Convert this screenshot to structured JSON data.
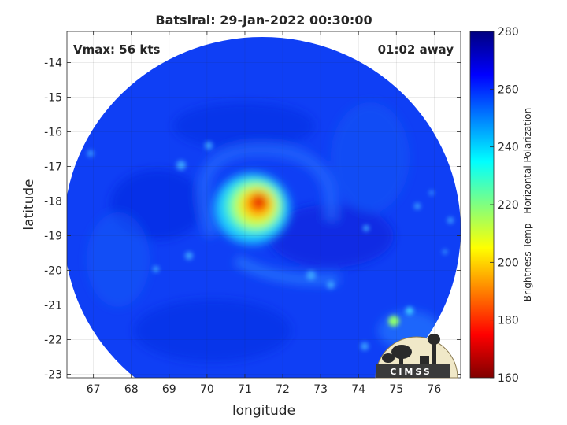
{
  "chart_data": {
    "type": "heatmap",
    "title": "Batsirai: 29-Jan-2022 00:30:00",
    "xlabel": "longitude",
    "ylabel": "latitude",
    "xlim": [
      66.3,
      76.7
    ],
    "ylim": [
      -23.1,
      -13.1
    ],
    "xticks": [
      67,
      68,
      69,
      70,
      71,
      72,
      73,
      74,
      75,
      76
    ],
    "yticks": [
      -14,
      -15,
      -16,
      -17,
      -18,
      -19,
      -20,
      -21,
      -22,
      -23
    ],
    "grid": true,
    "annotations": {
      "vmax": "Vmax: 56 kts",
      "time_offset": "01:02 away"
    },
    "colorbar": {
      "label": "Brightness Temp - Horizontal Polarization",
      "ticks": [
        280,
        260,
        240,
        220,
        200,
        180,
        160
      ],
      "range": [
        160,
        280
      ],
      "colormap": "jet",
      "position": "right"
    },
    "storm_center": {
      "lon": 71.3,
      "lat": -18.0,
      "min_temp": 180
    },
    "swath": {
      "center_lon": 71.5,
      "center_lat": -18.3,
      "background_temp": 262
    },
    "logo_text": "CIMSS"
  }
}
